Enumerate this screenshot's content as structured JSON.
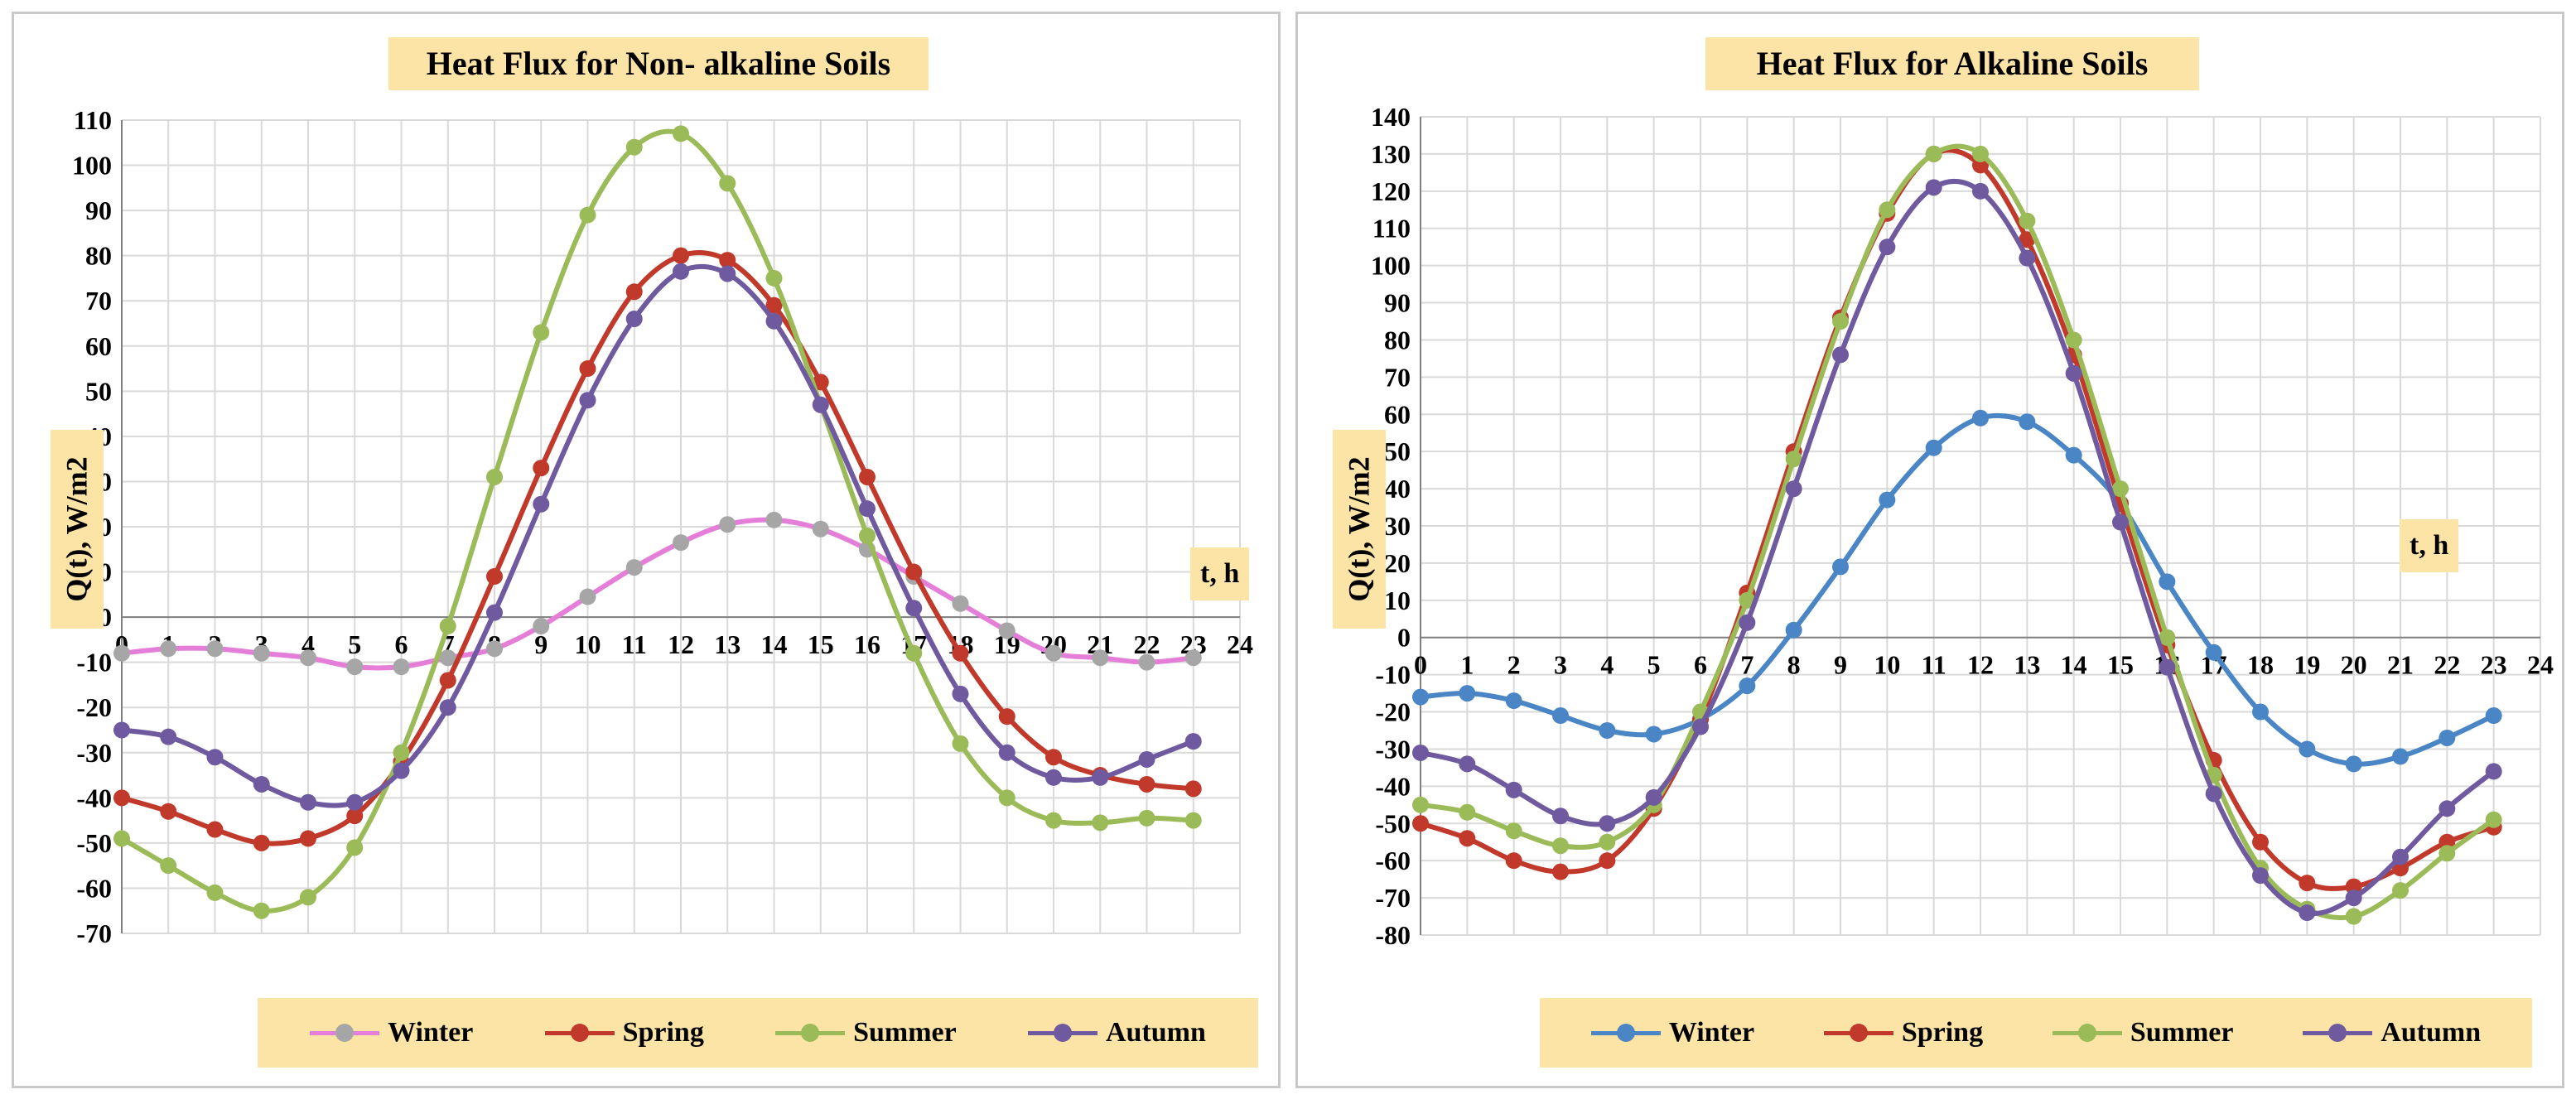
{
  "chart_data": [
    {
      "type": "line",
      "title": "Heat Flux for Non- alkaline Soils",
      "xlabel": "t, h",
      "ylabel": "Q(t), W/m2",
      "xlim": [
        0,
        24
      ],
      "ylim": [
        -70,
        110
      ],
      "ytick_step": 10,
      "xticks": [
        0,
        1,
        2,
        3,
        4,
        5,
        6,
        7,
        8,
        9,
        10,
        11,
        12,
        13,
        14,
        15,
        16,
        17,
        18,
        19,
        20,
        21,
        22,
        23,
        24
      ],
      "grid": true,
      "legend_position": "bottom",
      "series": [
        {
          "name": "Winter",
          "color": "#e57ed9",
          "marker_color": "#a6a6a6",
          "values": [
            -8,
            -7,
            -7,
            -8,
            -9,
            -11,
            -11,
            -9,
            -7,
            -2,
            4.5,
            11,
            16.5,
            20.5,
            21.5,
            19.5,
            15,
            9,
            3,
            -3,
            -8,
            -9,
            -10,
            -9
          ]
        },
        {
          "name": "Spring",
          "color": "#c0392b",
          "values": [
            -40,
            -43,
            -47,
            -50,
            -49,
            -44,
            -32,
            -14,
            9,
            33,
            55,
            72,
            80,
            79,
            69,
            52,
            31,
            10,
            -8,
            -22,
            -31,
            -35,
            -37,
            -38
          ]
        },
        {
          "name": "Summer",
          "color": "#9bbb59",
          "values": [
            -49,
            -55,
            -61,
            -65,
            -62,
            -51,
            -30,
            -2,
            31,
            63,
            89,
            104,
            107,
            96,
            75,
            47,
            18,
            -8,
            -28,
            -40,
            -45,
            -45.5,
            -44.5,
            -45
          ]
        },
        {
          "name": "Autumn",
          "color": "#6f5aa0",
          "values": [
            -25,
            -26.5,
            -31,
            -37,
            -41,
            -41,
            -34,
            -20,
            1,
            25,
            48,
            66,
            76.5,
            76,
            65.5,
            47,
            24,
            2,
            -17,
            -30,
            -35.5,
            -35.5,
            -31.5,
            -27.5
          ]
        }
      ]
    },
    {
      "type": "line",
      "title": "Heat Flux for Alkaline Soils",
      "xlabel": "t, h",
      "ylabel": "Q(t), W/m2",
      "xlim": [
        0,
        24
      ],
      "ylim": [
        -80,
        140
      ],
      "ytick_step": 10,
      "xticks": [
        0,
        1,
        2,
        3,
        4,
        5,
        6,
        7,
        8,
        9,
        10,
        11,
        12,
        13,
        14,
        15,
        16,
        17,
        18,
        19,
        20,
        21,
        22,
        23,
        24
      ],
      "grid": true,
      "legend_position": "bottom",
      "series": [
        {
          "name": "Winter",
          "color": "#4a86c5",
          "values": [
            -16,
            -15,
            -17,
            -21,
            -25,
            -26,
            -22,
            -13,
            2,
            19,
            37,
            51,
            59,
            58,
            49,
            36,
            15,
            -4,
            -20,
            -30,
            -34,
            -32,
            -27,
            -21
          ]
        },
        {
          "name": "Spring",
          "color": "#c0392b",
          "values": [
            -50,
            -54,
            -60,
            -63,
            -60,
            -46,
            -22,
            12,
            50,
            86,
            114,
            130,
            127,
            107,
            76,
            36,
            -2,
            -33,
            -55,
            -66,
            -67,
            -62,
            -55,
            -51
          ]
        },
        {
          "name": "Summer",
          "color": "#9bbb59",
          "values": [
            -45,
            -47,
            -52,
            -56,
            -55,
            -45,
            -20,
            10,
            48,
            85,
            115,
            130,
            130,
            112,
            80,
            40,
            0,
            -37,
            -62,
            -73,
            -75,
            -68,
            -58,
            -49
          ]
        },
        {
          "name": "Autumn",
          "color": "#6f5aa0",
          "values": [
            -31,
            -34,
            -41,
            -48,
            -50,
            -43,
            -24,
            4,
            40,
            76,
            105,
            121,
            120,
            102,
            71,
            31,
            -8,
            -42,
            -64,
            -74,
            -70,
            -59,
            -46,
            -36
          ]
        }
      ]
    }
  ]
}
